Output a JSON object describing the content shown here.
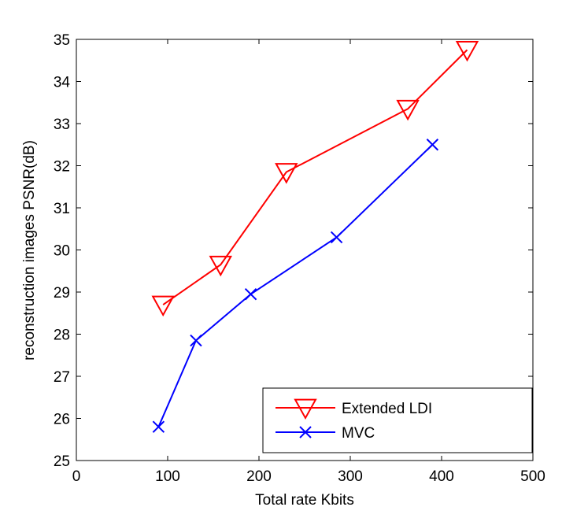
{
  "chart_data": {
    "type": "line",
    "title": "",
    "xlabel": "Total rate Kbits",
    "ylabel": "reconstruction images PSNR(dB)",
    "xlim": [
      0,
      500
    ],
    "ylim": [
      25,
      35
    ],
    "xticks": [
      0,
      100,
      200,
      300,
      400,
      500
    ],
    "yticks": [
      25,
      26,
      27,
      28,
      29,
      30,
      31,
      32,
      33,
      34,
      35
    ],
    "grid": false,
    "legend_position": "bottom-right",
    "series": [
      {
        "name": "Extended LDI",
        "color": "#ff0000",
        "marker": "triangle-down",
        "x": [
          95,
          158,
          230,
          363,
          428
        ],
        "y": [
          28.7,
          29.65,
          31.85,
          33.35,
          34.75
        ]
      },
      {
        "name": "MVC",
        "color": "#0000ff",
        "marker": "x",
        "x": [
          90,
          131,
          191,
          285,
          390
        ],
        "y": [
          25.8,
          27.85,
          28.95,
          30.3,
          32.5
        ]
      }
    ]
  }
}
